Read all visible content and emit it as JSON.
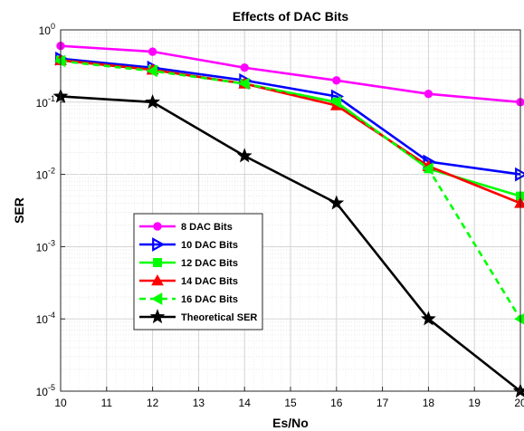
{
  "chart_data": {
    "type": "line",
    "title": "Effects of DAC Bits",
    "xlabel": "Es/No",
    "ylabel": "SER",
    "xlim": [
      10,
      20
    ],
    "ylim": [
      1e-05,
      1
    ],
    "yscale": "log",
    "grid": true,
    "minor_grid": true,
    "legend_position": "lower-left",
    "x_ticks": [
      "10",
      "11",
      "12",
      "13",
      "14",
      "15",
      "16",
      "17",
      "18",
      "19",
      "20"
    ],
    "x": [
      10,
      12,
      14,
      16,
      18,
      20
    ],
    "series": [
      {
        "name": "8 DAC Bits",
        "color": "#ff00ff",
        "marker": "circle",
        "dash": "solid",
        "values": [
          0.6,
          0.5,
          0.3,
          0.2,
          0.13,
          0.1
        ]
      },
      {
        "name": "10 DAC Bits",
        "color": "#0000ff",
        "marker": "triangle-right",
        "dash": "solid",
        "values": [
          0.4,
          0.3,
          0.2,
          0.12,
          0.015,
          0.01
        ]
      },
      {
        "name": "12 DAC Bits",
        "color": "#00ff00",
        "marker": "square",
        "dash": "solid",
        "values": [
          0.38,
          0.28,
          0.18,
          0.1,
          0.012,
          0.005
        ]
      },
      {
        "name": "14 DAC Bits",
        "color": "#ff0000",
        "marker": "triangle-up",
        "dash": "solid",
        "values": [
          0.38,
          0.28,
          0.18,
          0.09,
          0.013,
          0.004
        ]
      },
      {
        "name": "16 DAC Bits",
        "color": "#00ff00",
        "marker": "triangle-left",
        "dash": "dashed",
        "values": [
          0.37,
          0.27,
          0.18,
          0.1,
          0.012,
          0.0001
        ]
      },
      {
        "name": "Theoretical SER",
        "color": "#000000",
        "marker": "star",
        "dash": "solid",
        "values": [
          0.12,
          0.1,
          0.018,
          0.004,
          0.0001,
          1e-05
        ]
      }
    ]
  }
}
